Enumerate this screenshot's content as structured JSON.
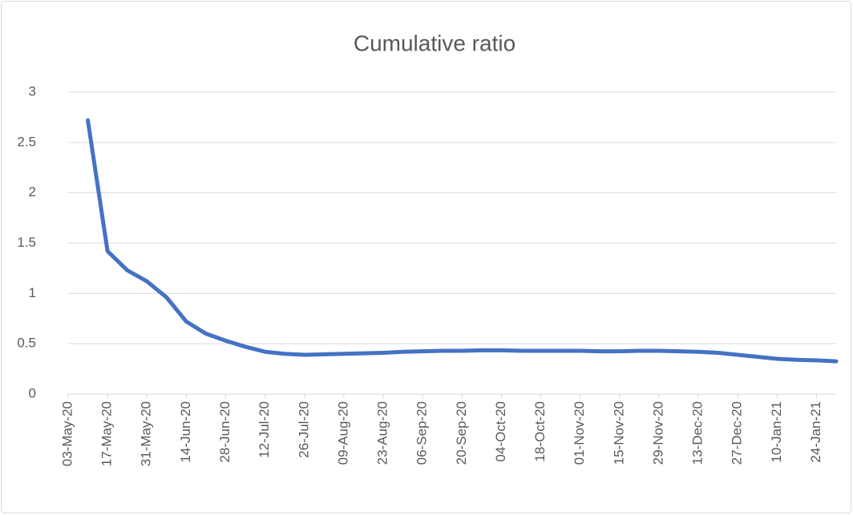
{
  "chart_data": {
    "type": "line",
    "title": "Cumulative ratio",
    "x": [
      "2020-05-10",
      "2020-05-17",
      "2020-05-24",
      "2020-05-31",
      "2020-06-07",
      "2020-06-14",
      "2020-06-21",
      "2020-06-28",
      "2020-07-05",
      "2020-07-12",
      "2020-07-19",
      "2020-07-26",
      "2020-08-02",
      "2020-08-09",
      "2020-08-16",
      "2020-08-23",
      "2020-08-30",
      "2020-09-06",
      "2020-09-13",
      "2020-09-20",
      "2020-09-27",
      "2020-10-04",
      "2020-10-11",
      "2020-10-18",
      "2020-10-25",
      "2020-11-01",
      "2020-11-08",
      "2020-11-15",
      "2020-11-22",
      "2020-11-29",
      "2020-12-06",
      "2020-12-13",
      "2020-12-20",
      "2020-12-27",
      "2021-01-03",
      "2021-01-10",
      "2021-01-17",
      "2021-01-24",
      "2021-01-31"
    ],
    "series": [
      {
        "name": "Cumulative ratio",
        "color": "#4472c4",
        "values": [
          2.72,
          1.42,
          1.23,
          1.12,
          0.96,
          0.72,
          0.6,
          0.53,
          0.47,
          0.42,
          0.4,
          0.39,
          0.395,
          0.4,
          0.405,
          0.41,
          0.42,
          0.425,
          0.43,
          0.43,
          0.435,
          0.435,
          0.43,
          0.43,
          0.43,
          0.43,
          0.425,
          0.425,
          0.43,
          0.43,
          0.425,
          0.42,
          0.41,
          0.39,
          0.37,
          0.35,
          0.34,
          0.335,
          0.325
        ]
      }
    ],
    "xlim": [
      "2020-05-03",
      "2021-01-31"
    ],
    "xticks": [
      {
        "value": "2020-05-03",
        "label": "03-May-20"
      },
      {
        "value": "2020-05-17",
        "label": "17-May-20"
      },
      {
        "value": "2020-05-31",
        "label": "31-May-20"
      },
      {
        "value": "2020-06-14",
        "label": "14-Jun-20"
      },
      {
        "value": "2020-06-28",
        "label": "28-Jun-20"
      },
      {
        "value": "2020-07-12",
        "label": "12-Jul-20"
      },
      {
        "value": "2020-07-26",
        "label": "26-Jul-20"
      },
      {
        "value": "2020-08-09",
        "label": "09-Aug-20"
      },
      {
        "value": "2020-08-23",
        "label": "23-Aug-20"
      },
      {
        "value": "2020-09-06",
        "label": "06-Sep-20"
      },
      {
        "value": "2020-09-20",
        "label": "20-Sep-20"
      },
      {
        "value": "2020-10-04",
        "label": "04-Oct-20"
      },
      {
        "value": "2020-10-18",
        "label": "18-Oct-20"
      },
      {
        "value": "2020-11-01",
        "label": "01-Nov-20"
      },
      {
        "value": "2020-11-15",
        "label": "15-Nov-20"
      },
      {
        "value": "2020-11-29",
        "label": "29-Nov-20"
      },
      {
        "value": "2020-12-13",
        "label": "13-Dec-20"
      },
      {
        "value": "2020-12-27",
        "label": "27-Dec-20"
      },
      {
        "value": "2021-01-10",
        "label": "10-Jan-21"
      },
      {
        "value": "2021-01-24",
        "label": "24-Jan-21"
      }
    ],
    "ylim": [
      0,
      3
    ],
    "yticks": [
      0,
      0.5,
      1,
      1.5,
      2,
      2.5,
      3
    ],
    "grid": true
  }
}
